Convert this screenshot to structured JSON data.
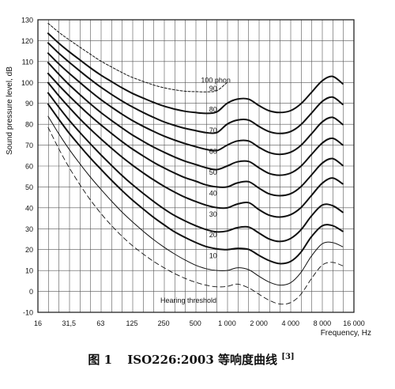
{
  "chart_data": {
    "type": "line",
    "title": "",
    "ylabel": "Sound pressure level, dB",
    "xlabel": "Frequency, Hz",
    "x_scale": "log2",
    "xlim": [
      16,
      16000
    ],
    "ylim": [
      -10,
      130
    ],
    "x_ticks": [
      16,
      31.5,
      63,
      125,
      250,
      500,
      1000,
      2000,
      4000,
      8000,
      16000
    ],
    "x_tick_labels": [
      "16",
      "31,5",
      "63",
      "125",
      "250",
      "500",
      "1 000",
      "2 000",
      "4 000",
      "8 000",
      "16 000"
    ],
    "y_ticks": [
      -10,
      0,
      10,
      20,
      30,
      40,
      50,
      60,
      70,
      80,
      90,
      100,
      110,
      120,
      130
    ],
    "y_tick_labels": [
      "-10",
      "0",
      "10",
      "20",
      "30",
      "40",
      "50",
      "60",
      "70",
      "80",
      "90",
      "100",
      "110",
      "120",
      "130"
    ],
    "grid": true,
    "base_curve_x": [
      20,
      25,
      31.5,
      40,
      50,
      63,
      80,
      100,
      125,
      160,
      200,
      250,
      315,
      400,
      500,
      630,
      800,
      1000,
      1250,
      1600,
      2000,
      2500,
      3150,
      4000,
      5000,
      6300,
      8000,
      10000,
      12500
    ],
    "series": [
      {
        "name": "Hearing threshold",
        "style": "dashed",
        "x": [
          20,
          25,
          31.5,
          40,
          50,
          63,
          80,
          100,
          125,
          160,
          200,
          250,
          315,
          400,
          500,
          630,
          800,
          1000,
          1250,
          1600,
          2000,
          2500,
          3150,
          4000,
          5000,
          6300,
          8000,
          10000,
          12500
        ],
        "values": [
          78.5,
          68.7,
          59.5,
          51.1,
          44.0,
          37.5,
          31.5,
          26.5,
          22.1,
          17.9,
          14.4,
          11.4,
          8.6,
          6.2,
          4.4,
          3.0,
          2.2,
          2.4,
          3.5,
          1.7,
          -1.3,
          -4.2,
          -6.0,
          -5.4,
          -1.5,
          6.0,
          12.6,
          13.9,
          12.3
        ]
      },
      {
        "name": "10",
        "style": "solid",
        "width": 1,
        "x": [
          20,
          25,
          31.5,
          40,
          50,
          63,
          80,
          100,
          125,
          160,
          200,
          250,
          315,
          400,
          500,
          630,
          800,
          1000,
          1250,
          1600,
          2000,
          2500,
          3150,
          4000,
          5000,
          6300,
          8000,
          10000,
          12500
        ],
        "values": [
          83.8,
          75.8,
          68.2,
          61.1,
          54.9,
          49.0,
          43.2,
          38.1,
          33.5,
          28.8,
          24.8,
          21.3,
          18.0,
          15.0,
          12.6,
          10.9,
          10.0,
          10.0,
          11.3,
          10.4,
          7.3,
          4.5,
          3.0,
          4.1,
          8.9,
          16.8,
          22.8,
          23.4,
          21.4
        ]
      },
      {
        "name": "20",
        "style": "solid",
        "width": 2,
        "x": [
          20,
          25,
          31.5,
          40,
          50,
          63,
          80,
          100,
          125,
          160,
          200,
          250,
          315,
          400,
          500,
          630,
          800,
          1000,
          1250,
          1600,
          2000,
          2500,
          3150,
          4000,
          5000,
          6300,
          8000,
          10000,
          12500
        ],
        "values": [
          89.6,
          82.7,
          75.9,
          69.6,
          64.0,
          58.6,
          53.2,
          48.4,
          43.9,
          39.4,
          35.5,
          32.0,
          28.6,
          25.8,
          23.5,
          21.5,
          20.4,
          20.0,
          20.6,
          20.1,
          17.3,
          14.8,
          13.3,
          14.3,
          18.6,
          26.1,
          31.4,
          31.5,
          28.8
        ]
      },
      {
        "name": "30",
        "style": "solid",
        "width": 2,
        "x": [
          20,
          25,
          31.5,
          40,
          50,
          63,
          80,
          100,
          125,
          160,
          200,
          250,
          315,
          400,
          500,
          630,
          800,
          1000,
          1250,
          1600,
          2000,
          2500,
          3150,
          4000,
          5000,
          6300,
          8000,
          10000,
          12500
        ],
        "values": [
          95.0,
          88.5,
          82.1,
          76.1,
          70.8,
          65.5,
          60.3,
          55.6,
          51.3,
          46.9,
          43.1,
          39.6,
          36.4,
          33.7,
          31.5,
          29.6,
          28.5,
          28.9,
          30.5,
          30.8,
          28.0,
          25.1,
          23.9,
          25.3,
          29.3,
          36.0,
          41.3,
          41.1,
          37.9
        ]
      },
      {
        "name": "40",
        "style": "solid",
        "width": 2,
        "x": [
          20,
          25,
          31.5,
          40,
          50,
          63,
          80,
          100,
          125,
          160,
          200,
          250,
          315,
          400,
          500,
          630,
          800,
          1000,
          1250,
          1600,
          2000,
          2500,
          3150,
          4000,
          5000,
          6300,
          8000,
          10000,
          12500
        ],
        "values": [
          99.9,
          93.9,
          88.2,
          82.6,
          77.8,
          73.1,
          68.5,
          64.4,
          60.6,
          56.7,
          53.4,
          50.4,
          47.6,
          45.0,
          43.1,
          41.3,
          40.1,
          40.0,
          41.8,
          42.5,
          39.2,
          36.5,
          35.6,
          36.7,
          40.0,
          45.8,
          51.8,
          54.3,
          51.5
        ]
      },
      {
        "name": "50",
        "style": "solid",
        "width": 2,
        "x": [
          20,
          25,
          31.5,
          40,
          50,
          63,
          80,
          100,
          125,
          160,
          200,
          250,
          315,
          400,
          500,
          630,
          800,
          1000,
          1250,
          1600,
          2000,
          2500,
          3150,
          4000,
          5000,
          6300,
          8000,
          10000,
          12500
        ],
        "values": [
          104.3,
          98.9,
          93.7,
          88.6,
          84.1,
          79.8,
          75.6,
          71.8,
          68.3,
          64.8,
          61.8,
          59.2,
          56.7,
          54.4,
          52.8,
          51.0,
          50.0,
          50.0,
          51.9,
          52.5,
          49.5,
          46.7,
          45.8,
          46.7,
          50.0,
          55.6,
          61.4,
          63.6,
          60.3
        ]
      },
      {
        "name": "60",
        "style": "solid",
        "width": 2,
        "x": [
          20,
          25,
          31.5,
          40,
          50,
          63,
          80,
          100,
          125,
          160,
          200,
          250,
          315,
          400,
          500,
          630,
          800,
          1000,
          1250,
          1600,
          2000,
          2500,
          3150,
          4000,
          5000,
          6300,
          8000,
          10000,
          12500
        ],
        "values": [
          109.5,
          104.2,
          99.0,
          94.2,
          89.9,
          85.7,
          81.8,
          78.3,
          75.0,
          71.8,
          69.1,
          66.7,
          64.4,
          62.3,
          60.8,
          59.2,
          58.3,
          60.0,
          62.0,
          62.2,
          59.2,
          56.5,
          55.6,
          56.6,
          59.8,
          65.4,
          71.0,
          73.3,
          70.1
        ]
      },
      {
        "name": "70",
        "style": "solid",
        "width": 2,
        "x": [
          20,
          25,
          31.5,
          40,
          50,
          63,
          80,
          100,
          125,
          160,
          200,
          250,
          315,
          400,
          500,
          630,
          800,
          1000,
          1250,
          1600,
          2000,
          2500,
          3150,
          4000,
          5000,
          6300,
          8000,
          10000,
          12500
        ],
        "values": [
          114.0,
          109.1,
          104.5,
          100.0,
          95.9,
          91.9,
          88.2,
          84.9,
          81.9,
          79.0,
          76.6,
          74.4,
          72.5,
          70.7,
          69.3,
          68.0,
          67.4,
          70.0,
          72.0,
          72.0,
          69.0,
          66.5,
          65.6,
          66.6,
          69.8,
          75.3,
          81.1,
          83.3,
          79.9
        ]
      },
      {
        "name": "80",
        "style": "solid",
        "width": 2,
        "x": [
          20,
          25,
          31.5,
          40,
          50,
          63,
          80,
          100,
          125,
          160,
          200,
          250,
          315,
          400,
          500,
          630,
          800,
          1000,
          1250,
          1600,
          2000,
          2500,
          3150,
          4000,
          5000,
          6300,
          8000,
          10000,
          12500
        ],
        "values": [
          118.9,
          114.2,
          109.8,
          105.5,
          101.6,
          97.8,
          94.3,
          91.2,
          88.4,
          85.6,
          83.3,
          81.2,
          79.5,
          78.0,
          77.0,
          76.0,
          76.0,
          80.0,
          82.0,
          82.0,
          79.0,
          76.5,
          75.6,
          76.5,
          79.7,
          85.2,
          90.9,
          93.0,
          89.5
        ]
      },
      {
        "name": "90",
        "style": "solid",
        "width": 2,
        "x": [
          20,
          25,
          31.5,
          40,
          50,
          63,
          80,
          100,
          125,
          160,
          200,
          250,
          315,
          400,
          500,
          630,
          800,
          1000,
          1250,
          1600,
          2000,
          2500,
          3150,
          4000,
          5000,
          6300,
          8000,
          10000,
          12500
        ],
        "values": [
          123.5,
          119.0,
          114.8,
          110.8,
          107.1,
          103.6,
          100.4,
          97.5,
          94.9,
          92.5,
          90.5,
          88.7,
          87.3,
          86.2,
          85.6,
          85.2,
          85.9,
          90.0,
          92.0,
          92.0,
          89.0,
          86.5,
          85.6,
          86.5,
          89.7,
          95.1,
          100.8,
          102.9,
          99.4
        ]
      },
      {
        "name": "100 phon",
        "style": "dashed",
        "width": 1,
        "x": [
          20,
          25,
          31.5,
          40,
          50,
          63,
          80,
          100,
          125,
          160,
          200,
          250,
          315,
          400,
          500,
          630,
          800,
          1000
        ],
        "values": [
          128.3,
          124.2,
          120.5,
          116.9,
          113.6,
          110.3,
          107.4,
          104.8,
          102.5,
          100.5,
          98.8,
          97.5,
          96.5,
          95.8,
          95.6,
          95.5,
          96.1,
          100.0
        ]
      }
    ],
    "annotations": [
      "Hearing threshold"
    ]
  },
  "caption": {
    "label": "图 1",
    "text": "ISO226:2003 等响度曲线",
    "ref": "[3]"
  }
}
